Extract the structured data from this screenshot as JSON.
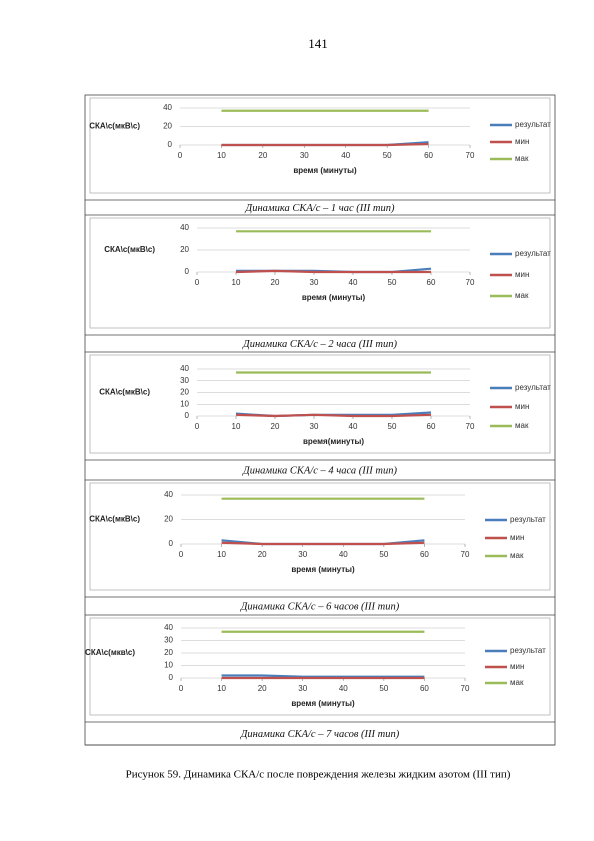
{
  "page_number": "141",
  "figure_caption": "Рисунок 59. Динамика  СКА/с после повреждения железы жидким азотом (III тип)",
  "chart_data": [
    {
      "type": "line",
      "caption": "Динамика  СКА/с  – 1 час (III тип)",
      "y_label": "СКА\\с(мкВ\\с)",
      "x_label": "время (минуты)",
      "x": [
        10,
        20,
        30,
        40,
        50,
        60
      ],
      "xlim": [
        0,
        70
      ],
      "xticks": [
        0,
        10,
        20,
        30,
        40,
        50,
        60,
        70
      ],
      "ylim": [
        0,
        40
      ],
      "yticks": [
        0,
        20,
        40
      ],
      "grid": true,
      "series": [
        {
          "name": "результат",
          "color": "#4a7ebb",
          "values": [
            0,
            0,
            0,
            0,
            0,
            3
          ]
        },
        {
          "name": "мин",
          "color": "#c0504d",
          "values": [
            0,
            0,
            0,
            0,
            0,
            1
          ]
        },
        {
          "name": "мак",
          "color": "#9bbb59",
          "values": [
            37,
            37,
            37,
            37,
            37,
            37
          ]
        }
      ]
    },
    {
      "type": "line",
      "caption": "Динамика  СКА/с  – 2 часа (III тип)",
      "y_label": "СКА\\с(мкВ\\с)",
      "x_label": "время (минуты)",
      "x": [
        10,
        20,
        30,
        40,
        50,
        60
      ],
      "xlim": [
        0,
        70
      ],
      "xticks": [
        0,
        10,
        20,
        30,
        40,
        50,
        60,
        70
      ],
      "ylim": [
        0,
        40
      ],
      "yticks": [
        0,
        20,
        40
      ],
      "grid": true,
      "series": [
        {
          "name": "результат",
          "color": "#4a7ebb",
          "values": [
            1,
            1,
            1,
            0,
            0,
            3
          ]
        },
        {
          "name": "мин",
          "color": "#c0504d",
          "values": [
            0,
            1,
            0,
            0,
            0,
            0
          ]
        },
        {
          "name": "мак",
          "color": "#9bbb59",
          "values": [
            37,
            37,
            37,
            37,
            37,
            37
          ]
        }
      ]
    },
    {
      "type": "line",
      "caption": "Динамика СКА/с – 4 часа (III тип)",
      "y_label": "СКА\\с(мкВ\\с)",
      "x_label": "время(минуты)",
      "x": [
        10,
        20,
        30,
        40,
        50,
        60
      ],
      "xlim": [
        0,
        70
      ],
      "xticks": [
        0,
        10,
        20,
        30,
        40,
        50,
        60,
        70
      ],
      "ylim": [
        0,
        40
      ],
      "yticks": [
        0,
        10,
        20,
        30,
        40
      ],
      "grid": true,
      "series": [
        {
          "name": "результат",
          "color": "#4a7ebb",
          "values": [
            2,
            0,
            1,
            1,
            1,
            3
          ]
        },
        {
          "name": "мин",
          "color": "#c0504d",
          "values": [
            1,
            0,
            1,
            0,
            0,
            1
          ]
        },
        {
          "name": "мак",
          "color": "#9bbb59",
          "values": [
            37,
            37,
            37,
            37,
            37,
            37
          ]
        }
      ]
    },
    {
      "type": "line",
      "caption": "Динамика  СКА/с  – 6 часов (III тип)",
      "y_label": "СКА\\с(мкВ\\с)",
      "x_label": "время (минуты)",
      "x": [
        10,
        20,
        30,
        40,
        50,
        60
      ],
      "xlim": [
        0,
        70
      ],
      "xticks": [
        0,
        10,
        20,
        30,
        40,
        50,
        60,
        70
      ],
      "ylim": [
        0,
        40
      ],
      "yticks": [
        0,
        20,
        40
      ],
      "grid": true,
      "series": [
        {
          "name": "результат",
          "color": "#4a7ebb",
          "values": [
            3,
            0,
            0,
            0,
            0,
            3
          ]
        },
        {
          "name": "мин",
          "color": "#c0504d",
          "values": [
            1,
            0,
            0,
            0,
            0,
            1
          ]
        },
        {
          "name": "мак",
          "color": "#9bbb59",
          "values": [
            37,
            37,
            37,
            37,
            37,
            37
          ]
        }
      ]
    },
    {
      "type": "line",
      "caption": "Динамика СКА/с – 7 часов (III тип)",
      "y_label": "СКА\\с(мкв\\с)",
      "x_label": "время (минуты)",
      "x": [
        10,
        20,
        30,
        40,
        50,
        60
      ],
      "xlim": [
        0,
        70
      ],
      "xticks": [
        0,
        10,
        20,
        30,
        40,
        50,
        60,
        70
      ],
      "ylim": [
        0,
        40
      ],
      "yticks": [
        0,
        10,
        20,
        30,
        40
      ],
      "grid": true,
      "series": [
        {
          "name": "результат",
          "color": "#4a7ebb",
          "values": [
            2,
            2,
            1,
            1,
            1,
            1
          ]
        },
        {
          "name": "мин",
          "color": "#c0504d",
          "values": [
            0,
            0,
            0,
            0,
            0,
            0
          ]
        },
        {
          "name": "мак",
          "color": "#9bbb59",
          "values": [
            37,
            37,
            37,
            37,
            37,
            37
          ]
        }
      ]
    }
  ]
}
